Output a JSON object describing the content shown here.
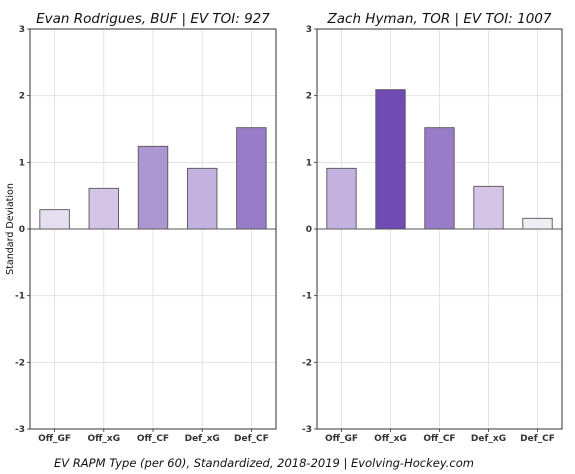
{
  "chart_data": [
    {
      "type": "bar",
      "title": "Evan Rodrigues, BUF  |  EV TOI: 927",
      "categories": [
        "Off_GF",
        "Off_xG",
        "Off_CF",
        "Def_xG",
        "Def_CF"
      ],
      "values": [
        0.29,
        0.61,
        1.24,
        0.91,
        1.52
      ],
      "colors": [
        "#e6dff0",
        "#d4c5e6",
        "#ad97d3",
        "#c3b1df",
        "#997cc7"
      ],
      "ylabel": "Standard Deviation",
      "ylim": [
        -3,
        3
      ],
      "yticks": [
        "3",
        "2",
        "1",
        "0",
        "-1",
        "-2",
        "-3"
      ],
      "grid": true
    },
    {
      "type": "bar",
      "title": "Zach Hyman, TOR  |  EV TOI: 1007",
      "categories": [
        "Off_GF",
        "Off_xG",
        "Off_CF",
        "Def_xG",
        "Def_CF"
      ],
      "values": [
        0.91,
        2.09,
        1.52,
        0.64,
        0.16
      ],
      "colors": [
        "#c3b1df",
        "#6f4bb2",
        "#997cc7",
        "#d4c5e6",
        "#f0eef5"
      ],
      "ylabel": "",
      "ylim": [
        -3,
        3
      ],
      "yticks": [
        "3",
        "2",
        "1",
        "0",
        "-1",
        "-2",
        "-3"
      ],
      "grid": true
    }
  ],
  "caption": "EV RAPM Type (per 60), Standardized, 2018-2019    |    Evolving-Hockey.com"
}
